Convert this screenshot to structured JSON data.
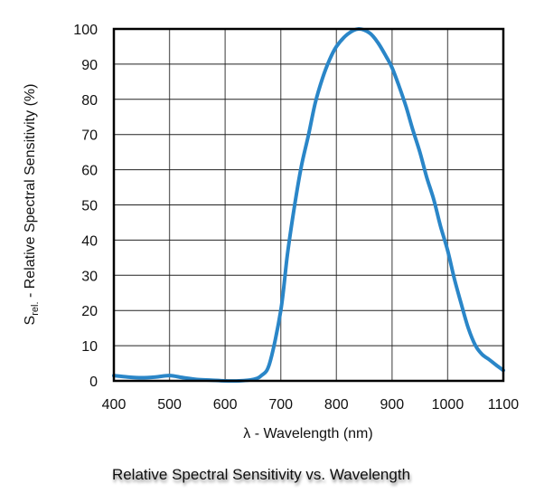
{
  "chart_data": {
    "type": "line",
    "title": "Relative Spectral Sensitivity vs. Wavelength",
    "xlabel": "λ - Wavelength (nm)",
    "ylabel": {
      "main": "S",
      "sub": "rel.",
      "rest": " - Relative Spectral Sensitivity (%)"
    },
    "xlim": [
      400,
      1100
    ],
    "ylim": [
      0,
      100
    ],
    "xticks": [
      400,
      500,
      600,
      700,
      800,
      900,
      1000,
      1100
    ],
    "yticks": [
      0,
      10,
      20,
      30,
      40,
      50,
      60,
      70,
      80,
      90,
      100
    ],
    "grid": true,
    "line_color": "#2a86c8",
    "series": [
      {
        "x": [
          400,
          425,
          450,
          475,
          500,
          525,
          550,
          575,
          600,
          625,
          650,
          665,
          680,
          700,
          712,
          725,
          737,
          750,
          762,
          775,
          787,
          800,
          820,
          840,
          860,
          875,
          890,
          900,
          912,
          925,
          937,
          950,
          962,
          975,
          987,
          1000,
          1012,
          1025,
          1037,
          1050,
          1062,
          1075,
          1087,
          1100
        ],
        "y": [
          1.5,
          1.1,
          0.9,
          1.1,
          1.5,
          0.9,
          0.4,
          0.2,
          0,
          0,
          0.4,
          1.5,
          5,
          20,
          36,
          50,
          61,
          70,
          79,
          86,
          91,
          95,
          98.5,
          100,
          98.8,
          96,
          92,
          89,
          84,
          78,
          71.5,
          65,
          58,
          51.5,
          44,
          37,
          29,
          21.5,
          15,
          10,
          7.5,
          6,
          4.5,
          3
        ]
      }
    ]
  }
}
